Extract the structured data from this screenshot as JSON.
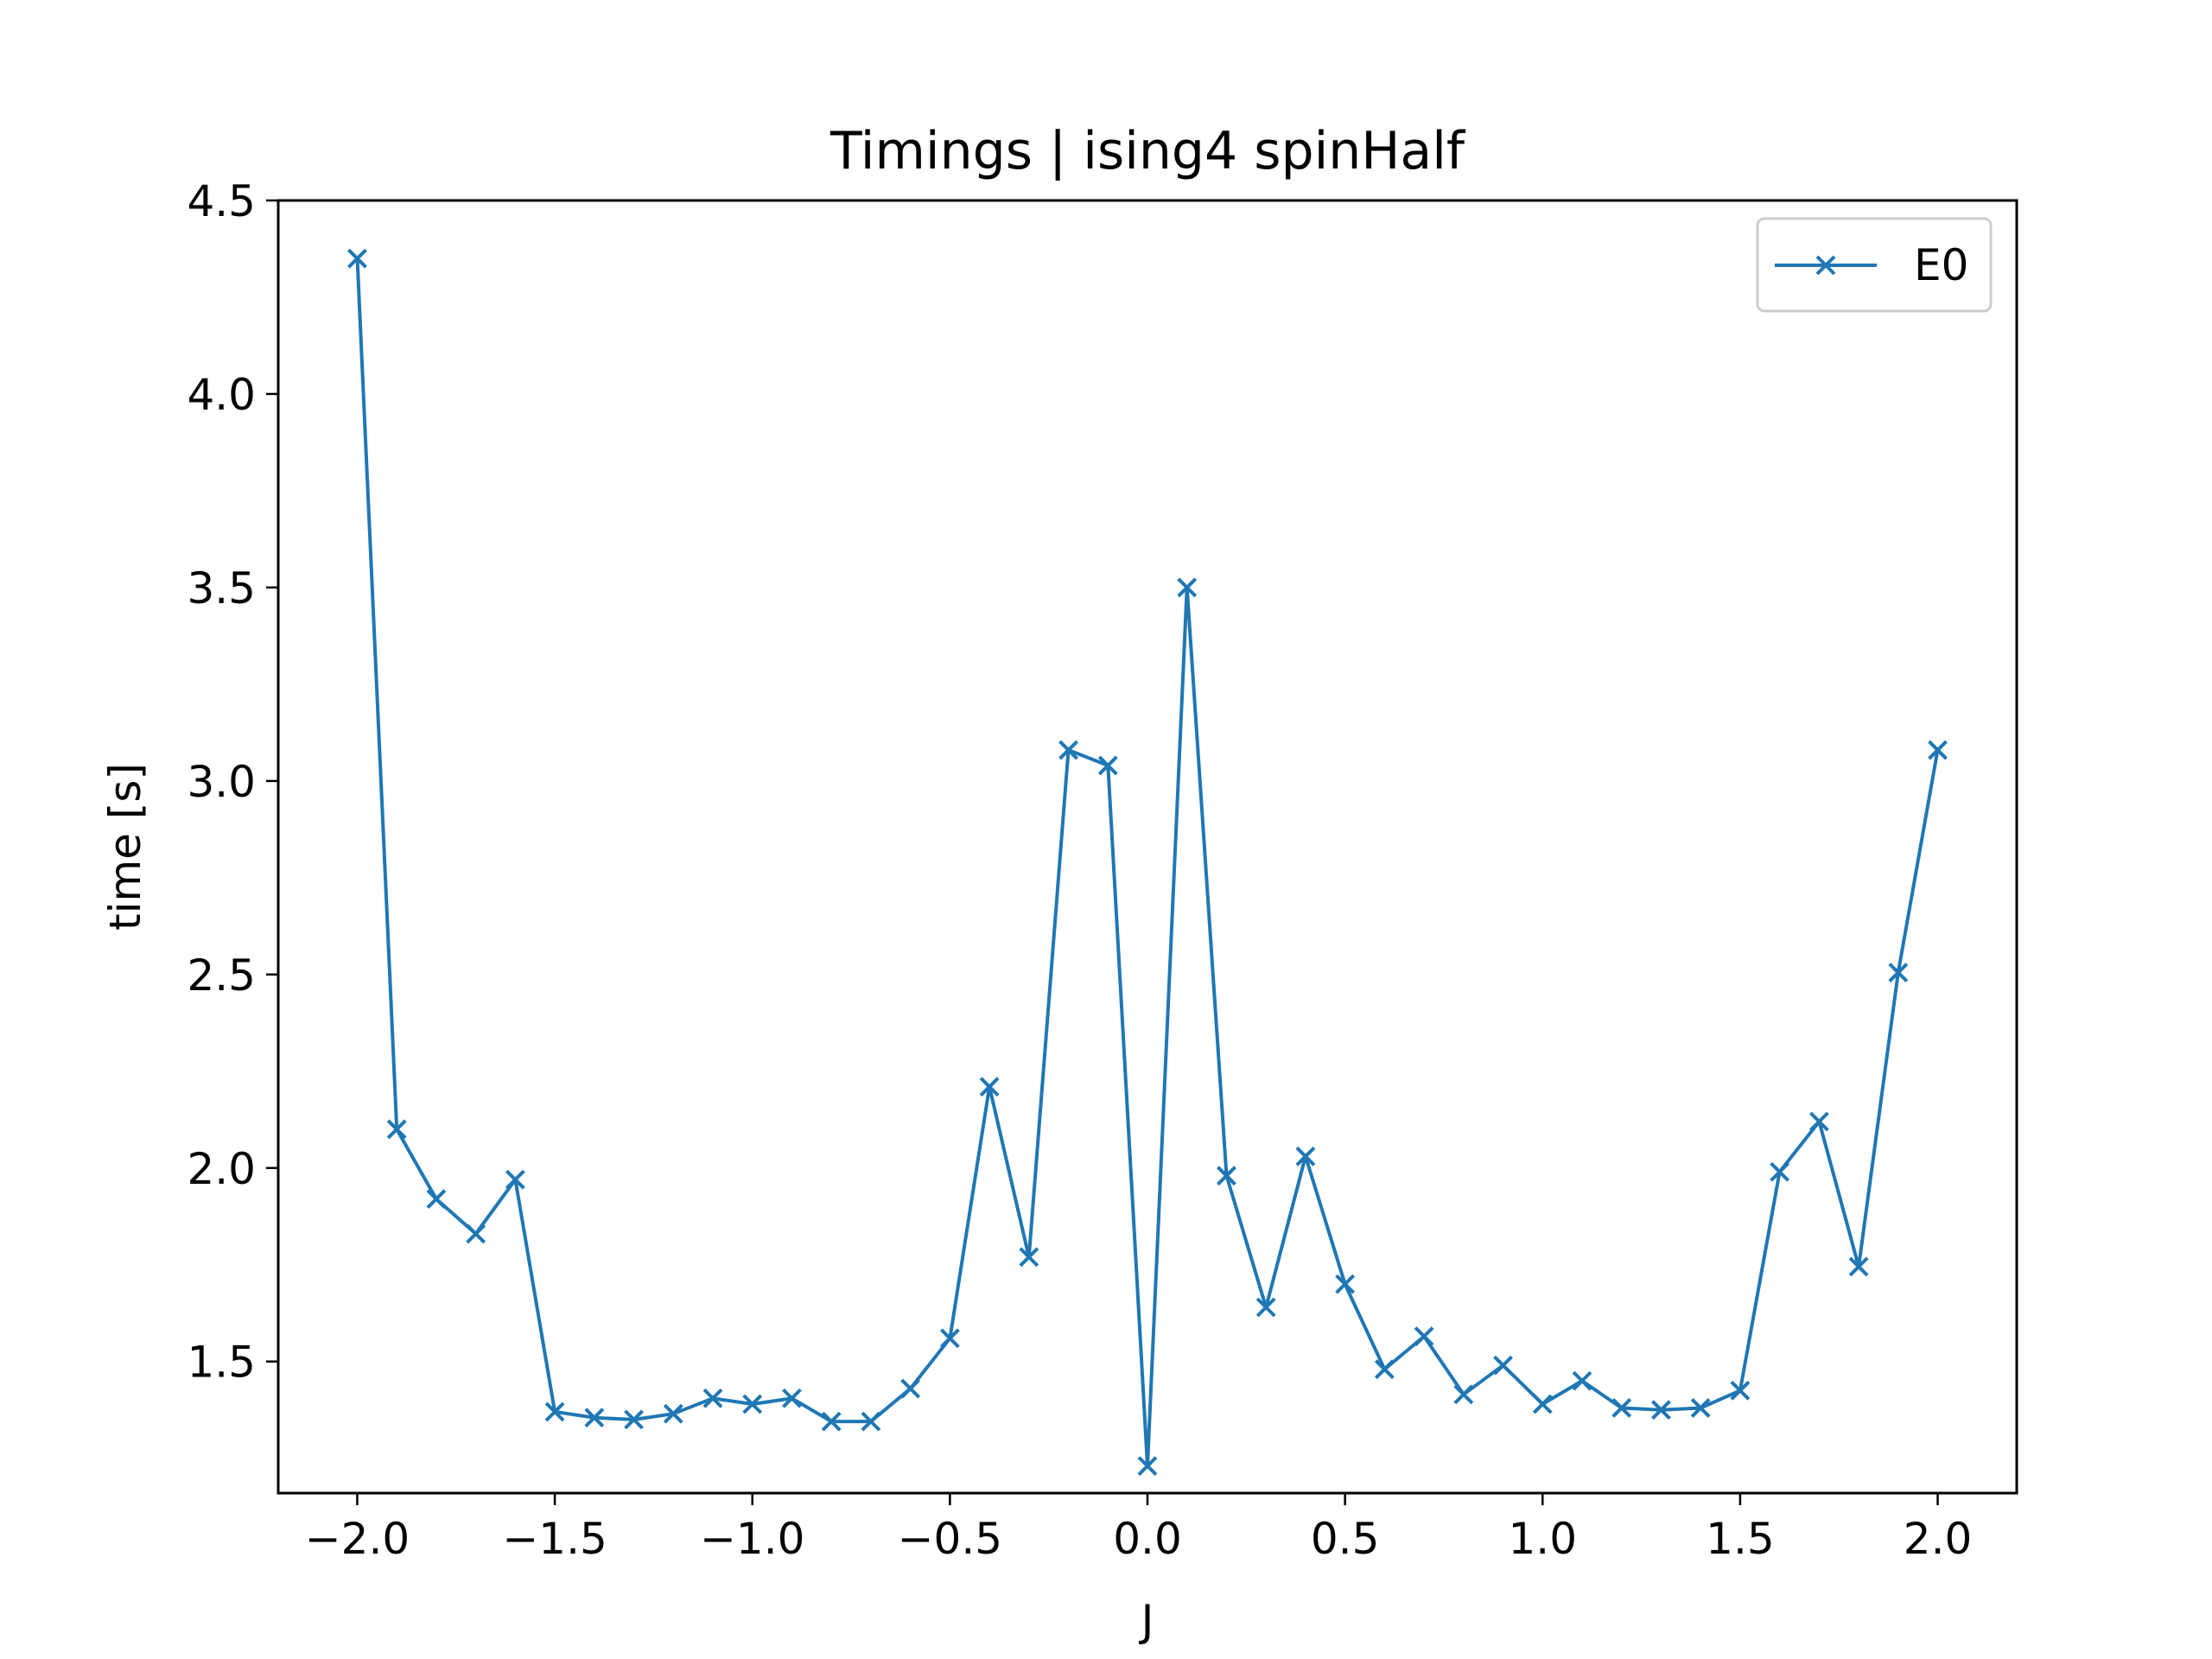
{
  "chart_data": {
    "type": "line",
    "title": "Timings | ising4 spinHalf",
    "xlabel": "J",
    "ylabel": "time [s]",
    "xlim": [
      -2.2,
      2.2
    ],
    "ylim": [
      1.16,
      4.5
    ],
    "x_ticks": [
      -2.0,
      -1.5,
      -1.0,
      -0.5,
      0.0,
      0.5,
      1.0,
      1.5,
      2.0
    ],
    "x_tick_labels": [
      "−2.0",
      "−1.5",
      "−1.0",
      "−0.5",
      "0.0",
      "0.5",
      "1.0",
      "1.5",
      "2.0"
    ],
    "y_ticks": [
      1.5,
      2.0,
      2.5,
      3.0,
      3.5,
      4.0,
      4.5
    ],
    "y_tick_labels": [
      "1.5",
      "2.0",
      "2.5",
      "3.0",
      "3.5",
      "4.0",
      "4.5"
    ],
    "grid": false,
    "legend_position": "top-right",
    "series": [
      {
        "name": "E0",
        "color": "#1f77b4",
        "marker": "x",
        "x": [
          -2.0,
          -1.9,
          -1.8,
          -1.7,
          -1.6,
          -1.5,
          -1.4,
          -1.3,
          -1.2,
          -1.1,
          -1.0,
          -0.9,
          -0.8,
          -0.7,
          -0.6,
          -0.5,
          -0.4,
          -0.3,
          -0.2,
          -0.1,
          0.0,
          0.1,
          0.2,
          0.3,
          0.4,
          0.5,
          0.6,
          0.7,
          0.8,
          0.9,
          1.0,
          1.1,
          1.2,
          1.3,
          1.4,
          1.5,
          1.6,
          1.7,
          1.8,
          1.9,
          2.0
        ],
        "y": [
          4.35,
          2.1,
          1.92,
          1.83,
          1.97,
          1.37,
          1.355,
          1.35,
          1.365,
          1.405,
          1.39,
          1.405,
          1.345,
          1.345,
          1.43,
          1.56,
          2.21,
          1.77,
          3.08,
          3.04,
          1.23,
          3.5,
          1.98,
          1.64,
          2.03,
          1.7,
          1.48,
          1.565,
          1.415,
          1.49,
          1.39,
          1.45,
          1.38,
          1.375,
          1.38,
          1.425,
          1.99,
          2.12,
          1.745,
          2.505,
          3.08
        ]
      }
    ]
  }
}
